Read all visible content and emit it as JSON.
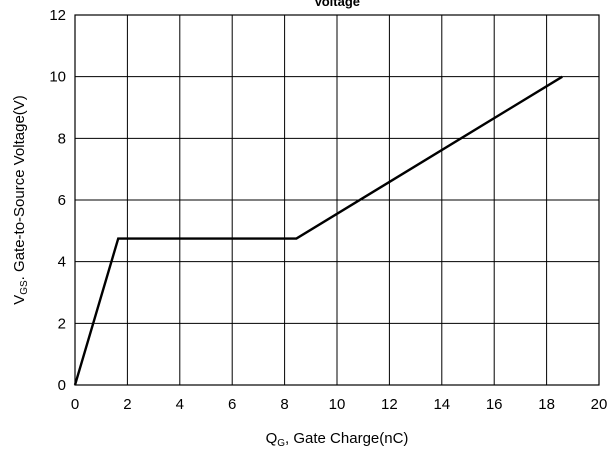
{
  "chart_data": {
    "type": "line",
    "title": "Voltage",
    "xlabel": {
      "prefix": "Q",
      "sub": "G",
      "suffix": ", Gate Charge(nC)"
    },
    "ylabel": {
      "prefix": "V",
      "sub": "GS",
      "suffix": ". Gate-to-Source Voltage(V)"
    },
    "xlim": [
      0,
      20
    ],
    "ylim": [
      0,
      12
    ],
    "xticks": [
      0,
      2,
      4,
      6,
      8,
      10,
      12,
      14,
      16,
      18,
      20
    ],
    "yticks": [
      0,
      2,
      4,
      6,
      8,
      10,
      12
    ],
    "grid": true,
    "series": [
      {
        "x": [
          0,
          1.65,
          8.45,
          18.6
        ],
        "y": [
          0,
          4.75,
          4.75,
          10.0
        ]
      }
    ],
    "colors": {
      "line": "#000000",
      "grid": "#000000",
      "frame": "#000000"
    }
  }
}
